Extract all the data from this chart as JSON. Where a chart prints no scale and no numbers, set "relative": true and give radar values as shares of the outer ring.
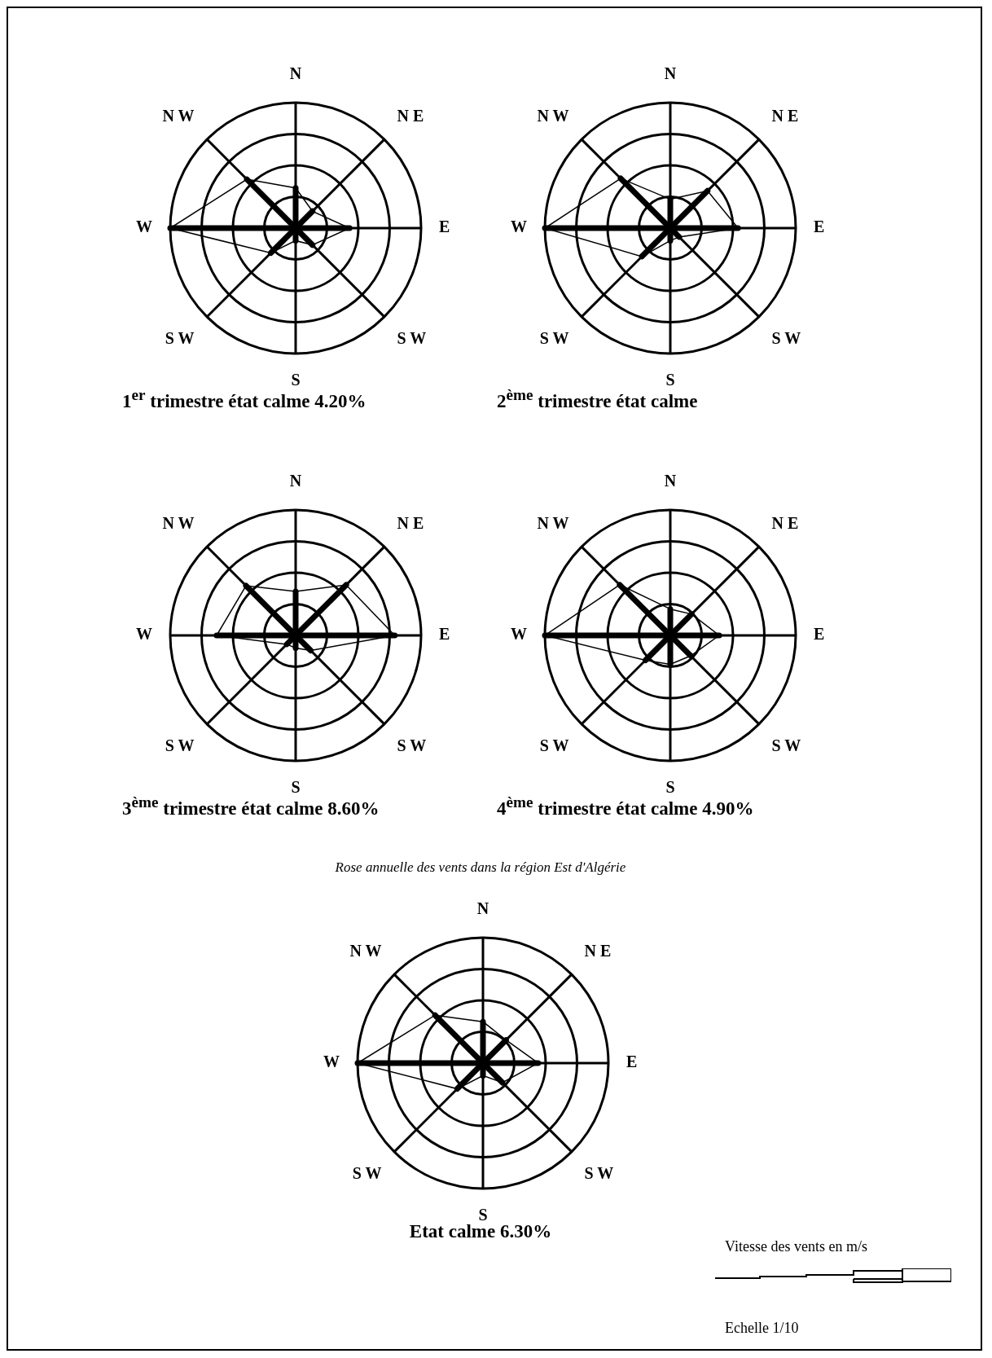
{
  "chart_data": [
    {
      "type": "radar",
      "title": "1$^{er}$ trimestre état calme 4.20%",
      "categories": [
        "N",
        "N E",
        "E",
        "S W",
        "S",
        "S W",
        "W",
        "N W"
      ],
      "relative": true,
      "grid": true,
      "marker": "none",
      "series": [
        {
          "color": "#000000",
          "values": [
            0.32,
            0.19,
            0.43,
            0.19,
            0.1,
            0.28,
            1.0,
            0.55
          ]
        }
      ]
    },
    {
      "type": "radar",
      "title": "2$^{ème}$ trimestre état calme",
      "categories": [
        "N",
        "N E",
        "E",
        "S W",
        "S",
        "S W",
        "W",
        "N W"
      ],
      "relative": true,
      "grid": true,
      "marker": "none",
      "series": [
        {
          "color": "#000000",
          "values": [
            0.23,
            0.42,
            0.54,
            0.1,
            0.1,
            0.32,
            1.0,
            0.56
          ]
        }
      ]
    },
    {
      "type": "radar",
      "title": "3$^{ème}$ trimestre état calme 8.60%",
      "categories": [
        "N",
        "N E",
        "E",
        "S W",
        "S",
        "S W",
        "W",
        "N W"
      ],
      "relative": true,
      "grid": true,
      "marker": "none",
      "series": [
        {
          "color": "#000000",
          "values": [
            0.35,
            0.57,
            0.79,
            0.17,
            0.1,
            0.1,
            0.63,
            0.56
          ]
        }
      ]
    },
    {
      "type": "radar",
      "title": "4$^{ème}$ trimestre état calme 4.90%",
      "categories": [
        "N",
        "N E",
        "E",
        "S W",
        "S",
        "S W",
        "W",
        "N W"
      ],
      "relative": true,
      "grid": true,
      "marker": "none",
      "series": [
        {
          "color": "#000000",
          "values": [
            0.21,
            0.24,
            0.39,
            0.23,
            0.23,
            0.28,
            1.0,
            0.57
          ]
        }
      ]
    },
    {
      "type": "radar",
      "subtitle": "Rose annuelle des vents dans la région Est d'Algérie",
      "title": "Etat calme 6.30%",
      "categories": [
        "N",
        "N E",
        "E",
        "S W",
        "S",
        "S W",
        "W",
        "N W"
      ],
      "relative": true,
      "grid": true,
      "marker": "none",
      "series": [
        {
          "color": "#000000",
          "values": [
            0.33,
            0.26,
            0.44,
            0.22,
            0.1,
            0.29,
            1.0,
            0.54
          ]
        }
      ],
      "annotations": [
        "Vitesse des vents en m/s",
        "Echelle 1/10"
      ]
    }
  ]
}
